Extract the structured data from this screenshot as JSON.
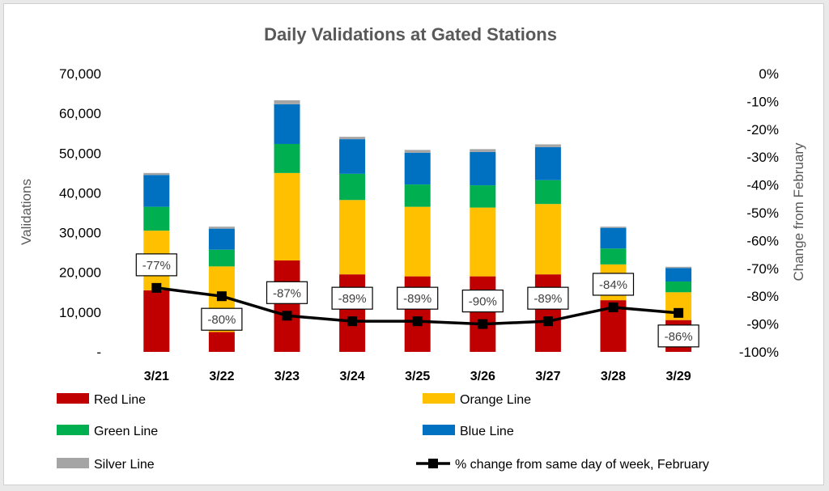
{
  "chart_data": {
    "type": "bar",
    "stacked": true,
    "title": "Daily Validations at Gated Stations",
    "categories": [
      "3/21",
      "3/22",
      "3/23",
      "3/24",
      "3/25",
      "3/26",
      "3/27",
      "3/28",
      "3/29"
    ],
    "ylabel": "Validations",
    "ylim": [
      0,
      70000
    ],
    "y_ticks": [
      "-",
      "10,000",
      "20,000",
      "30,000",
      "40,000",
      "50,000",
      "60,000",
      "70,000"
    ],
    "y2label": "Change from February",
    "y2lim": [
      -100,
      0
    ],
    "y2_ticks": [
      "-100%",
      "-90%",
      "-80%",
      "-70%",
      "-60%",
      "-50%",
      "-40%",
      "-30%",
      "-20%",
      "-10%",
      "0%"
    ],
    "series": [
      {
        "name": "Red Line",
        "color": "#C00000",
        "values": [
          15500,
          5000,
          23000,
          19500,
          19000,
          19000,
          19500,
          13000,
          8000
        ]
      },
      {
        "name": "Orange Line",
        "color": "#FFC000",
        "values": [
          15000,
          16500,
          22000,
          18700,
          17500,
          17300,
          17700,
          9000,
          7000
        ]
      },
      {
        "name": "Green Line",
        "color": "#00B050",
        "values": [
          6000,
          4200,
          7300,
          6600,
          5600,
          5600,
          6000,
          4000,
          2700
        ]
      },
      {
        "name": "Blue Line",
        "color": "#0070C0",
        "values": [
          8000,
          5300,
          10000,
          8700,
          8000,
          8400,
          8300,
          5200,
          3400
        ]
      },
      {
        "name": "Silver Line",
        "color": "#A5A5A5",
        "values": [
          500,
          500,
          1000,
          600,
          700,
          700,
          700,
          300,
          300
        ]
      }
    ],
    "line_series": {
      "name": "% change from same day of week, February",
      "color": "#000000",
      "axis": "secondary",
      "values": [
        -77,
        -80,
        -87,
        -89,
        -89,
        -90,
        -89,
        -84,
        -86
      ],
      "labels": [
        "-77%",
        "-80%",
        "-87%",
        "-89%",
        "-89%",
        "-90%",
        "-89%",
        "-84%",
        "-86%"
      ],
      "label_positions": [
        "above",
        "below",
        "above",
        "above",
        "above",
        "above",
        "above",
        "above",
        "below"
      ]
    },
    "legend_position": "bottom",
    "grid": false
  }
}
